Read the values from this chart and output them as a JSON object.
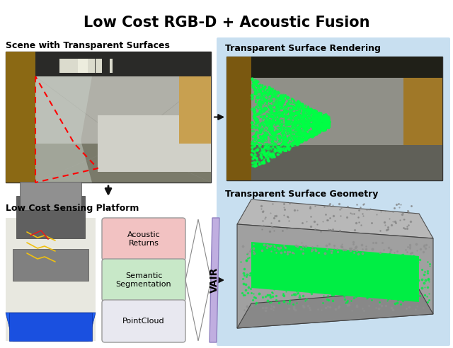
{
  "title": "Low Cost RGB-D + Acoustic Fusion",
  "title_fontsize": 15,
  "title_fontweight": "bold",
  "background_color": "#ffffff",
  "right_panel_color": "#c8dff0",
  "label_scene": "Scene with Transparent Surfaces",
  "label_platform": "Low Cost Sensing Platform",
  "label_rendering": "Transparent Surface Rendering",
  "label_geometry": "Transparent Surface Geometry",
  "box_labels": [
    "Acoustic\nReturns",
    "Semantic\nSegmentation",
    "PointCloud"
  ],
  "box_colors": [
    "#f2c2c2",
    "#c8e8c8",
    "#e8e8f0"
  ],
  "vair_label": "VAIR",
  "arrow_color": "#111111",
  "box_edge_color": "#999999",
  "funnel_color": "#c0aee0",
  "label_fontsize": 9
}
